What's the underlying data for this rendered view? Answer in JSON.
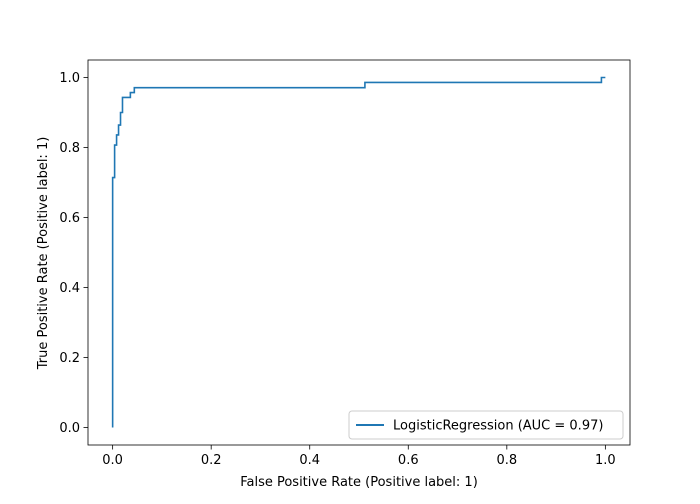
{
  "chart_data": {
    "type": "line",
    "title": "",
    "xlabel": "False Positive Rate (Positive label: 1)",
    "ylabel": "True Positive Rate (Positive label: 1)",
    "xlim": [
      -0.05,
      1.05
    ],
    "ylim": [
      -0.05,
      1.05
    ],
    "xticks": [
      0.0,
      0.2,
      0.4,
      0.6,
      0.8,
      1.0
    ],
    "xtick_labels": [
      "0.0",
      "0.2",
      "0.4",
      "0.6",
      "0.8",
      "1.0"
    ],
    "yticks": [
      0.0,
      0.2,
      0.4,
      0.6,
      0.8,
      1.0
    ],
    "ytick_labels": [
      "0.0",
      "0.2",
      "0.4",
      "0.6",
      "0.8",
      "1.0"
    ],
    "grid": false,
    "legend_position": "lower-right",
    "series": [
      {
        "name": "LogisticRegression (AUC = 0.97)",
        "color": "#1f77b4",
        "step": true,
        "x": [
          0.0,
          0.0,
          0.004,
          0.004,
          0.008,
          0.008,
          0.012,
          0.012,
          0.016,
          0.016,
          0.02,
          0.02,
          0.036,
          0.036,
          0.044,
          0.044,
          0.512,
          0.512,
          0.992,
          0.992,
          1.0
        ],
        "y": [
          0.0,
          0.714,
          0.714,
          0.807,
          0.807,
          0.836,
          0.836,
          0.864,
          0.864,
          0.9,
          0.9,
          0.943,
          0.943,
          0.957,
          0.957,
          0.971,
          0.971,
          0.986,
          0.986,
          1.0,
          1.0
        ]
      }
    ]
  }
}
